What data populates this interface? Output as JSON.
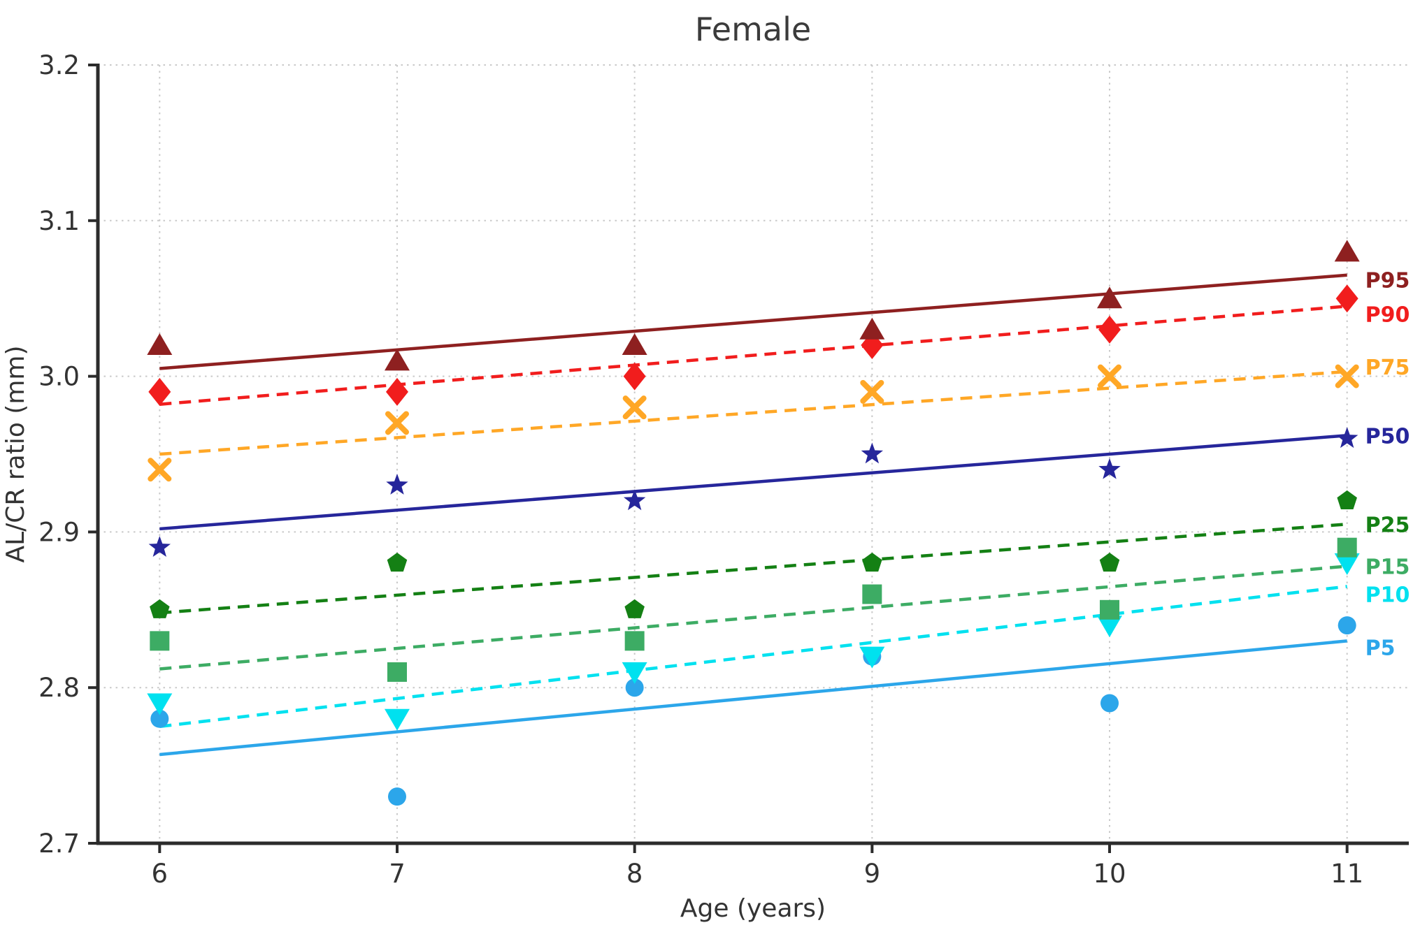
{
  "chart_data": {
    "type": "line",
    "title": "Female",
    "xlabel": "Age (years)",
    "ylabel": "AL/CR ratio (mm)",
    "x": [
      6,
      7,
      8,
      9,
      10,
      11
    ],
    "x_ticks": [
      "6",
      "7",
      "8",
      "9",
      "10",
      "11"
    ],
    "y_ticks": [
      "2.7",
      "2.8",
      "2.9",
      "3.0",
      "3.1",
      "3.2"
    ],
    "xlim": [
      5.74,
      11.26
    ],
    "ylim": [
      2.7,
      3.2
    ],
    "grid": "dotted",
    "legend_position": "labels-at-right-edge",
    "series": [
      {
        "name": "P95",
        "color": "#8e2020",
        "marker": "triangle-up-icon",
        "line": "solid",
        "points": [
          3.02,
          3.01,
          3.02,
          3.03,
          3.05,
          3.08
        ],
        "trend": {
          "x": [
            6,
            11
          ],
          "y": [
            3.005,
            3.065
          ]
        },
        "label_y": 3.062
      },
      {
        "name": "P90",
        "color": "#f11d1d",
        "marker": "diamond-icon",
        "line": "dashed",
        "points": [
          2.99,
          2.99,
          3.0,
          3.02,
          3.03,
          3.05
        ],
        "trend": {
          "x": [
            6,
            11
          ],
          "y": [
            2.982,
            3.045
          ]
        },
        "label_y": 3.04
      },
      {
        "name": "P75",
        "color": "#ffa726",
        "marker": "x-icon",
        "line": "dashed",
        "points": [
          2.94,
          2.97,
          2.98,
          2.99,
          3.0,
          3.0
        ],
        "trend": {
          "x": [
            6,
            11
          ],
          "y": [
            2.95,
            3.003
          ]
        },
        "label_y": 3.006
      },
      {
        "name": "P50",
        "color": "#26269b",
        "marker": "star-icon",
        "line": "solid",
        "points": [
          2.89,
          2.93,
          2.92,
          2.95,
          2.94,
          2.96
        ],
        "trend": {
          "x": [
            6,
            11
          ],
          "y": [
            2.902,
            2.962
          ]
        },
        "label_y": 2.962
      },
      {
        "name": "P25",
        "color": "#148014",
        "marker": "pentagon-icon",
        "line": "dashed",
        "points": [
          2.85,
          2.88,
          2.85,
          2.88,
          2.88,
          2.92
        ],
        "trend": {
          "x": [
            6,
            11
          ],
          "y": [
            2.848,
            2.905
          ]
        },
        "label_y": 2.905
      },
      {
        "name": "P15",
        "color": "#3dac64",
        "marker": "square-icon",
        "line": "dashed",
        "points": [
          2.83,
          2.81,
          2.83,
          2.86,
          2.85,
          2.89
        ],
        "trend": {
          "x": [
            6,
            11
          ],
          "y": [
            2.812,
            2.878
          ]
        },
        "label_y": 2.878
      },
      {
        "name": "P10",
        "color": "#00e1ef",
        "marker": "triangle-down-icon",
        "line": "dashed",
        "points": [
          2.79,
          2.78,
          2.81,
          2.82,
          2.84,
          2.88
        ],
        "trend": {
          "x": [
            6,
            11
          ],
          "y": [
            2.775,
            2.865
          ]
        },
        "label_y": 2.86
      },
      {
        "name": "P5",
        "color": "#2ca6ea",
        "marker": "circle-icon",
        "line": "solid",
        "points": [
          2.78,
          2.73,
          2.8,
          2.82,
          2.79,
          2.84
        ],
        "trend": {
          "x": [
            6,
            11
          ],
          "y": [
            2.757,
            2.83
          ]
        },
        "label_y": 2.826
      }
    ]
  }
}
